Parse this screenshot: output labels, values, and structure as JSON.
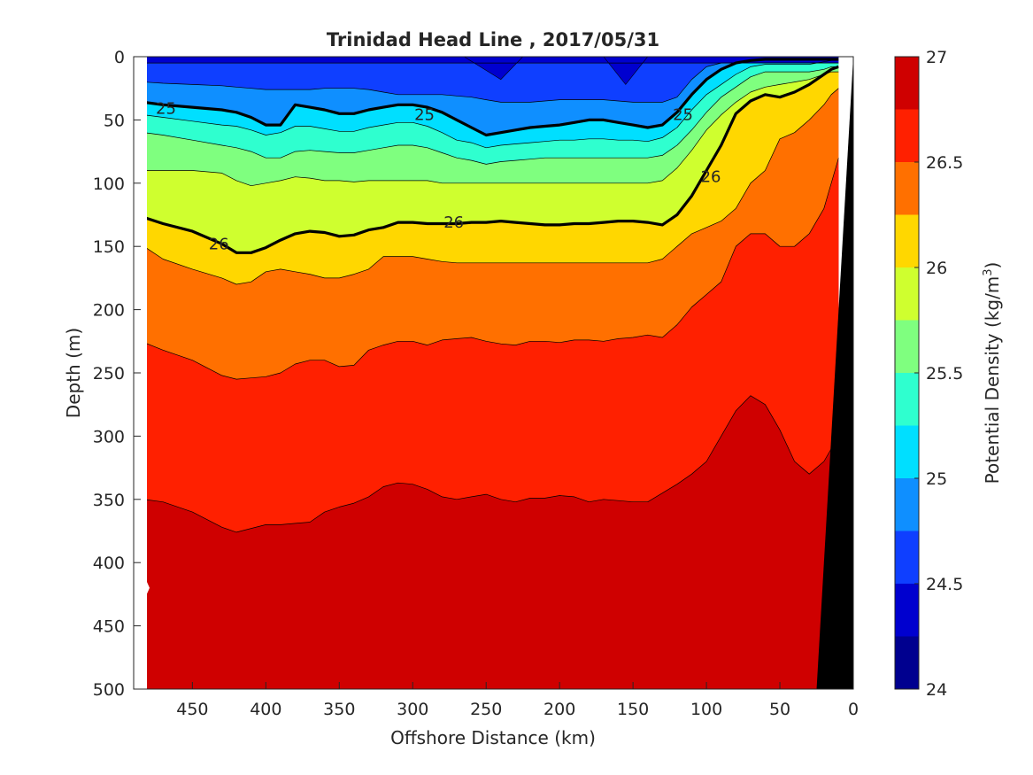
{
  "chart_data": {
    "type": "contour",
    "title": "Trinidad Head Line , 2017/05/31",
    "xlabel": "Offshore Distance (km)",
    "ylabel": "Depth (m)",
    "xlim": [
      490,
      0
    ],
    "ylim": [
      0,
      500
    ],
    "x_reversed": true,
    "y_reversed": true,
    "xticks": [
      "450",
      "400",
      "350",
      "300",
      "250",
      "200",
      "150",
      "100",
      "50",
      "0"
    ],
    "yticks": [
      "0",
      "50",
      "100",
      "150",
      "200",
      "250",
      "300",
      "350",
      "400",
      "450",
      "500"
    ],
    "colorbar": {
      "label": "Potential Density (kg/m",
      "label_superscript": "3",
      "label_suffix": ")",
      "range": [
        24,
        27
      ],
      "ticks": [
        "24",
        "24.5",
        "25",
        "25.5",
        "26",
        "26.5",
        "27"
      ],
      "levels": [
        24.0,
        24.25,
        24.5,
        24.75,
        25.0,
        25.25,
        25.5,
        25.75,
        26.0,
        26.25,
        26.5,
        26.75,
        27.0
      ],
      "colors": [
        "#00008f",
        "#0000cf",
        "#0f3fff",
        "#0f8fff",
        "#00dfff",
        "#2fffcf",
        "#7fff7f",
        "#cfff2f",
        "#ffd700",
        "#ff7000",
        "#ff2000",
        "#cf0000"
      ]
    },
    "isopycnals_m": {
      "x_km": [
        483,
        470,
        450,
        430,
        420,
        410,
        400,
        390,
        380,
        370,
        360,
        350,
        340,
        330,
        320,
        310,
        300,
        290,
        280,
        270,
        260,
        250,
        240,
        230,
        220,
        210,
        200,
        190,
        180,
        170,
        160,
        150,
        140,
        130,
        120,
        110,
        100,
        90,
        80,
        70,
        60,
        50,
        40,
        30,
        20,
        15,
        10
      ],
      "depth_at_24_5": [
        5,
        5,
        5,
        5,
        5,
        5,
        5,
        5,
        5,
        5,
        5,
        5,
        5,
        5,
        5,
        5,
        5,
        5,
        5,
        5,
        5,
        5,
        5,
        5,
        5,
        5,
        5,
        5,
        5,
        5,
        5,
        5,
        5,
        5,
        5,
        5,
        5,
        5,
        5,
        5,
        5,
        5,
        5,
        5,
        5,
        5,
        5
      ],
      "depth_at_24_75": [
        20,
        21,
        22,
        23,
        24,
        25,
        26,
        26,
        26,
        26,
        25,
        25,
        25,
        26,
        28,
        30,
        30,
        30,
        30,
        31,
        32,
        34,
        36,
        36,
        36,
        35,
        34,
        34,
        34,
        34,
        35,
        36,
        36,
        36,
        32,
        18,
        8,
        5,
        5,
        5,
        5,
        5,
        5,
        5,
        5,
        5,
        5
      ],
      "depth_at_25_0": [
        36,
        38,
        40,
        42,
        44,
        48,
        54,
        54,
        38,
        40,
        42,
        45,
        45,
        42,
        40,
        38,
        38,
        40,
        44,
        50,
        56,
        62,
        60,
        58,
        56,
        55,
        54,
        52,
        50,
        50,
        52,
        54,
        56,
        54,
        44,
        30,
        18,
        10,
        5,
        3,
        2,
        2,
        2,
        2,
        2,
        2,
        2
      ],
      "depth_at_25_25": [
        46,
        48,
        51,
        54,
        55,
        58,
        62,
        60,
        55,
        55,
        57,
        59,
        59,
        56,
        54,
        52,
        52,
        55,
        60,
        66,
        68,
        72,
        70,
        69,
        68,
        67,
        66,
        66,
        65,
        65,
        66,
        66,
        67,
        64,
        56,
        42,
        30,
        22,
        14,
        8,
        6,
        6,
        6,
        6,
        4,
        3,
        3
      ],
      "depth_at_25_5": [
        60,
        62,
        66,
        70,
        72,
        75,
        80,
        80,
        75,
        74,
        75,
        76,
        76,
        74,
        72,
        70,
        70,
        72,
        76,
        80,
        82,
        85,
        83,
        82,
        81,
        80,
        80,
        80,
        80,
        80,
        80,
        80,
        80,
        78,
        70,
        58,
        44,
        32,
        24,
        16,
        12,
        12,
        12,
        12,
        10,
        8,
        8
      ],
      "depth_at_25_75": [
        90,
        90,
        90,
        92,
        98,
        102,
        100,
        98,
        95,
        96,
        98,
        98,
        99,
        98,
        98,
        98,
        98,
        98,
        100,
        100,
        100,
        100,
        100,
        100,
        100,
        100,
        100,
        100,
        100,
        100,
        100,
        100,
        100,
        98,
        88,
        74,
        58,
        46,
        36,
        28,
        24,
        22,
        20,
        18,
        14,
        12,
        12
      ],
      "depth_at_26_0": [
        127,
        132,
        138,
        148,
        155,
        155,
        151,
        145,
        140,
        138,
        139,
        142,
        141,
        137,
        135,
        131,
        131,
        132,
        132,
        132,
        131,
        131,
        130,
        131,
        132,
        133,
        133,
        132,
        132,
        131,
        130,
        130,
        131,
        133,
        125,
        110,
        90,
        70,
        45,
        35,
        30,
        32,
        28,
        22,
        14,
        10,
        8
      ],
      "depth_at_26_25": [
        150,
        160,
        168,
        175,
        180,
        178,
        170,
        168,
        170,
        172,
        175,
        175,
        172,
        168,
        158,
        158,
        158,
        160,
        162,
        163,
        163,
        163,
        163,
        163,
        163,
        163,
        163,
        163,
        163,
        163,
        163,
        163,
        163,
        160,
        150,
        140,
        135,
        130,
        120,
        100,
        90,
        65,
        60,
        50,
        38,
        30,
        25
      ],
      "depth_at_26_5": [
        226,
        232,
        240,
        252,
        255,
        254,
        253,
        250,
        243,
        240,
        240,
        245,
        244,
        232,
        228,
        225,
        225,
        228,
        224,
        223,
        222,
        225,
        227,
        228,
        225,
        225,
        226,
        224,
        224,
        225,
        223,
        222,
        220,
        222,
        212,
        198,
        188,
        178,
        150,
        140,
        140,
        150,
        150,
        140,
        120,
        100,
        80
      ],
      "depth_at_26_75": [
        350,
        352,
        360,
        372,
        376,
        373,
        370,
        370,
        369,
        368,
        360,
        356,
        353,
        348,
        340,
        337,
        338,
        342,
        348,
        350,
        348,
        346,
        350,
        352,
        349,
        349,
        347,
        348,
        352,
        350,
        351,
        352,
        352,
        345,
        338,
        330,
        320,
        300,
        280,
        268,
        275,
        295,
        320,
        330,
        320,
        310,
        300
      ]
    },
    "contour_labels": [
      {
        "text": "25",
        "x_km": 468,
        "depth": 41
      },
      {
        "text": "25",
        "x_km": 292,
        "depth": 46
      },
      {
        "text": "25",
        "x_km": 116,
        "depth": 46
      },
      {
        "text": "26",
        "x_km": 432,
        "depth": 148
      },
      {
        "text": "26",
        "x_km": 272,
        "depth": 131
      },
      {
        "text": "26",
        "x_km": 97,
        "depth": 95
      }
    ],
    "bathymetry": {
      "color": "#000000",
      "surface_km": 0,
      "bottom_km": 25
    }
  }
}
